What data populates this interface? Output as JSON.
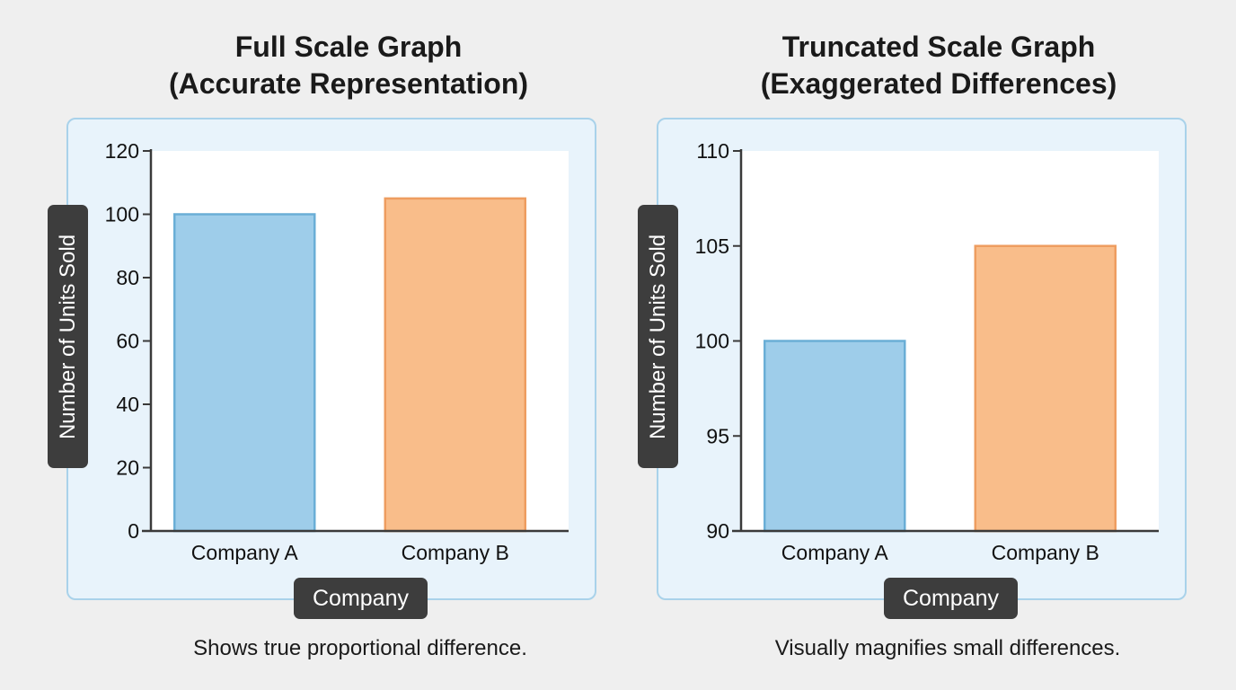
{
  "chart_data": [
    {
      "type": "bar",
      "title": [
        "Full Scale Graph",
        "(Accurate Representation)"
      ],
      "xlabel": "Company",
      "ylabel": "Number of Units Sold",
      "categories": [
        "Company A",
        "Company B"
      ],
      "values": [
        100,
        105
      ],
      "colors": [
        "#9ecdea",
        "#f9bd8a"
      ],
      "border_colors": [
        "#6aaed6",
        "#ee9d60"
      ],
      "ylim": [
        0,
        120
      ],
      "yticks": [
        0,
        20,
        40,
        60,
        80,
        100,
        120
      ],
      "grid": false,
      "caption": "Shows true proportional difference."
    },
    {
      "type": "bar",
      "title": [
        "Truncated Scale Graph",
        "(Exaggerated Differences)"
      ],
      "xlabel": "Company",
      "ylabel": "Number of Units Sold",
      "categories": [
        "Company A",
        "Company B"
      ],
      "values": [
        100,
        105
      ],
      "colors": [
        "#9ecdea",
        "#f9bd8a"
      ],
      "border_colors": [
        "#6aaed6",
        "#ee9d60"
      ],
      "ylim": [
        90,
        110
      ],
      "yticks": [
        90,
        95,
        100,
        105,
        110
      ],
      "grid": false,
      "caption": "Visually magnifies small differences."
    }
  ]
}
